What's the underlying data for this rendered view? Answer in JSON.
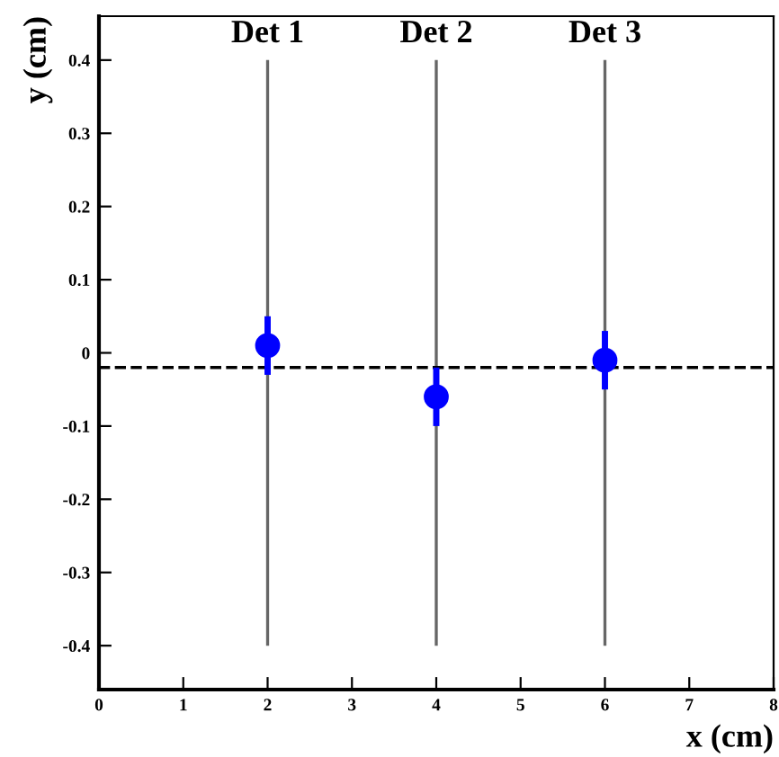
{
  "chart_data": {
    "type": "scatter",
    "xlabel": "x (cm)",
    "ylabel": "y (cm)",
    "xlim": [
      0,
      8
    ],
    "xticks": [
      0,
      1,
      2,
      3,
      4,
      5,
      6,
      7,
      8
    ],
    "ylim": [
      -0.46,
      0.46
    ],
    "yticks": [
      -0.4,
      -0.3,
      -0.2,
      -0.1,
      0,
      0.1,
      0.2,
      0.3,
      0.4
    ],
    "legend": false,
    "marker": "circle",
    "series": [
      {
        "color": "#0000ff",
        "x": [
          2,
          4,
          6
        ],
        "values": [
          0.01,
          -0.06,
          -0.01
        ],
        "errors": [
          0.04,
          0.04,
          0.04
        ]
      }
    ],
    "ref_lines": [
      {
        "axis": "x",
        "value": 2,
        "label": "Det 1",
        "color": "#666666",
        "line_style": "solid"
      },
      {
        "axis": "x",
        "value": 4,
        "label": "Det 2",
        "color": "#666666",
        "line_style": "solid"
      },
      {
        "axis": "x",
        "value": 6,
        "label": "Det 3",
        "color": "#666666",
        "line_style": "solid"
      },
      {
        "axis": "y",
        "value": -0.02,
        "color": "#000000",
        "line_style": "dashed"
      }
    ]
  }
}
